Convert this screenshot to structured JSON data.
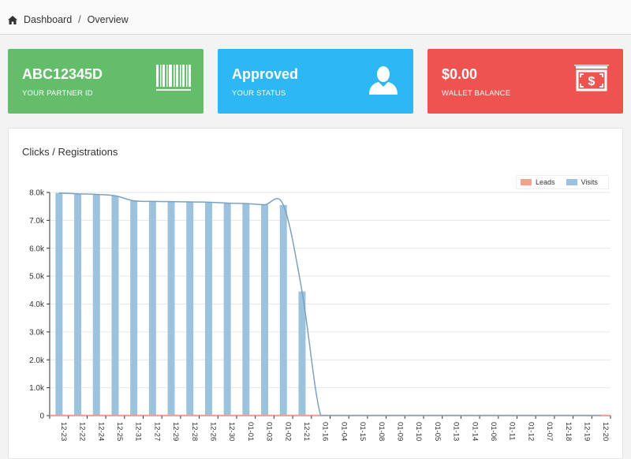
{
  "breadcrumb": {
    "home": "Dashboard",
    "separator": "/",
    "current": "Overview"
  },
  "cards": {
    "partner": {
      "value": "ABC12345D",
      "label": "YOUR PARTNER ID",
      "icon": "barcode-icon",
      "color": "#63bd6a"
    },
    "status": {
      "value": "Approved",
      "label": "YOUR STATUS",
      "icon": "user-icon",
      "color": "#2db7f5"
    },
    "wallet": {
      "value": "$0.00",
      "label": "WALLET BALANCE",
      "icon": "money-icon",
      "color": "#ef5350"
    }
  },
  "panel": {
    "title": "Clicks / Registrations"
  },
  "chart_data": {
    "type": "bar",
    "categories": [
      "12-23",
      "12-22",
      "12-24",
      "12-25",
      "12-31",
      "12-27",
      "12-29",
      "12-28",
      "12-26",
      "12-30",
      "01-01",
      "01-03",
      "01-02",
      "12-21",
      "01-16",
      "01-04",
      "01-15",
      "01-08",
      "01-09",
      "01-10",
      "01-05",
      "01-13",
      "01-14",
      "01-06",
      "01-11",
      "01-12",
      "01-07",
      "12-18",
      "12-19",
      "12-20"
    ],
    "series": [
      {
        "name": "Leads",
        "color": "#f4a08f",
        "values": [
          0,
          0,
          0,
          0,
          0,
          0,
          0,
          0,
          0,
          0,
          0,
          0,
          0,
          0,
          0,
          0,
          0,
          0,
          0,
          0,
          0,
          0,
          0,
          0,
          0,
          0,
          0,
          0,
          0,
          0
        ]
      },
      {
        "name": "Visits",
        "color": "#9cc2de",
        "values": [
          7980,
          7950,
          7930,
          7880,
          7700,
          7680,
          7670,
          7660,
          7650,
          7620,
          7600,
          7560,
          7550,
          4450,
          0,
          0,
          0,
          0,
          0,
          0,
          0,
          0,
          0,
          0,
          0,
          0,
          0,
          0,
          0,
          0
        ]
      }
    ],
    "ylim": [
      0,
      8000
    ],
    "yticks": [
      0,
      1000,
      2000,
      3000,
      4000,
      5000,
      6000,
      7000,
      8000
    ],
    "ytick_labels": [
      "0",
      "1.0k",
      "2.0k",
      "3.0k",
      "4.0k",
      "5.0k",
      "6.0k",
      "7.0k",
      "8.0k"
    ],
    "legend": "top-right",
    "grid": true,
    "trend_line_color": "#7aa3c0"
  }
}
